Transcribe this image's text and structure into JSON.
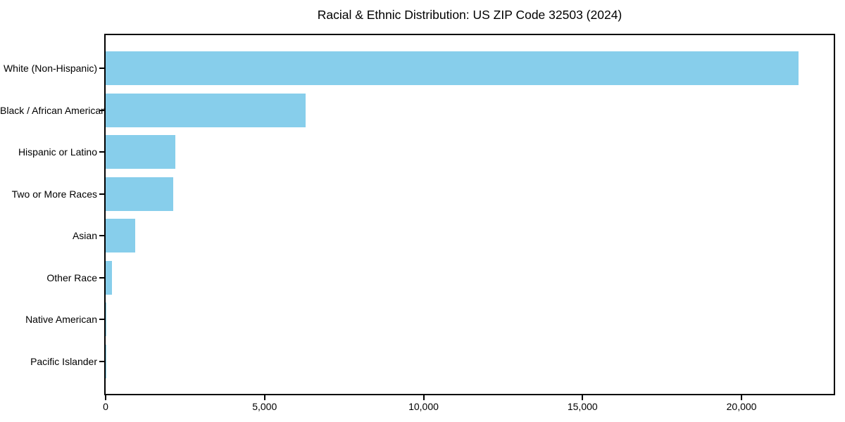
{
  "chart_data": {
    "type": "bar",
    "orientation": "horizontal",
    "title": "Racial & Ethnic Distribution: US ZIP Code 32503 (2024)",
    "categories": [
      "White (Non-Hispanic)",
      "Black / African American",
      "Hispanic or Latino",
      "Two or More Races",
      "Asian",
      "Other Race",
      "Native American",
      "Pacific Islander"
    ],
    "values": [
      21800,
      6300,
      2200,
      2130,
      940,
      190,
      30,
      10
    ],
    "xlabel": "",
    "ylabel": "",
    "xlim": [
      0,
      22900
    ],
    "xticks": [
      0,
      5000,
      10000,
      15000,
      20000
    ],
    "xtick_labels": [
      "0",
      "5,000",
      "10,000",
      "15,000",
      "20,000"
    ],
    "bar_color": "#87CEEB",
    "spine_color": "#000000",
    "text_color": "#000000",
    "background_color": "#ffffff",
    "grid": false,
    "legend": false
  }
}
